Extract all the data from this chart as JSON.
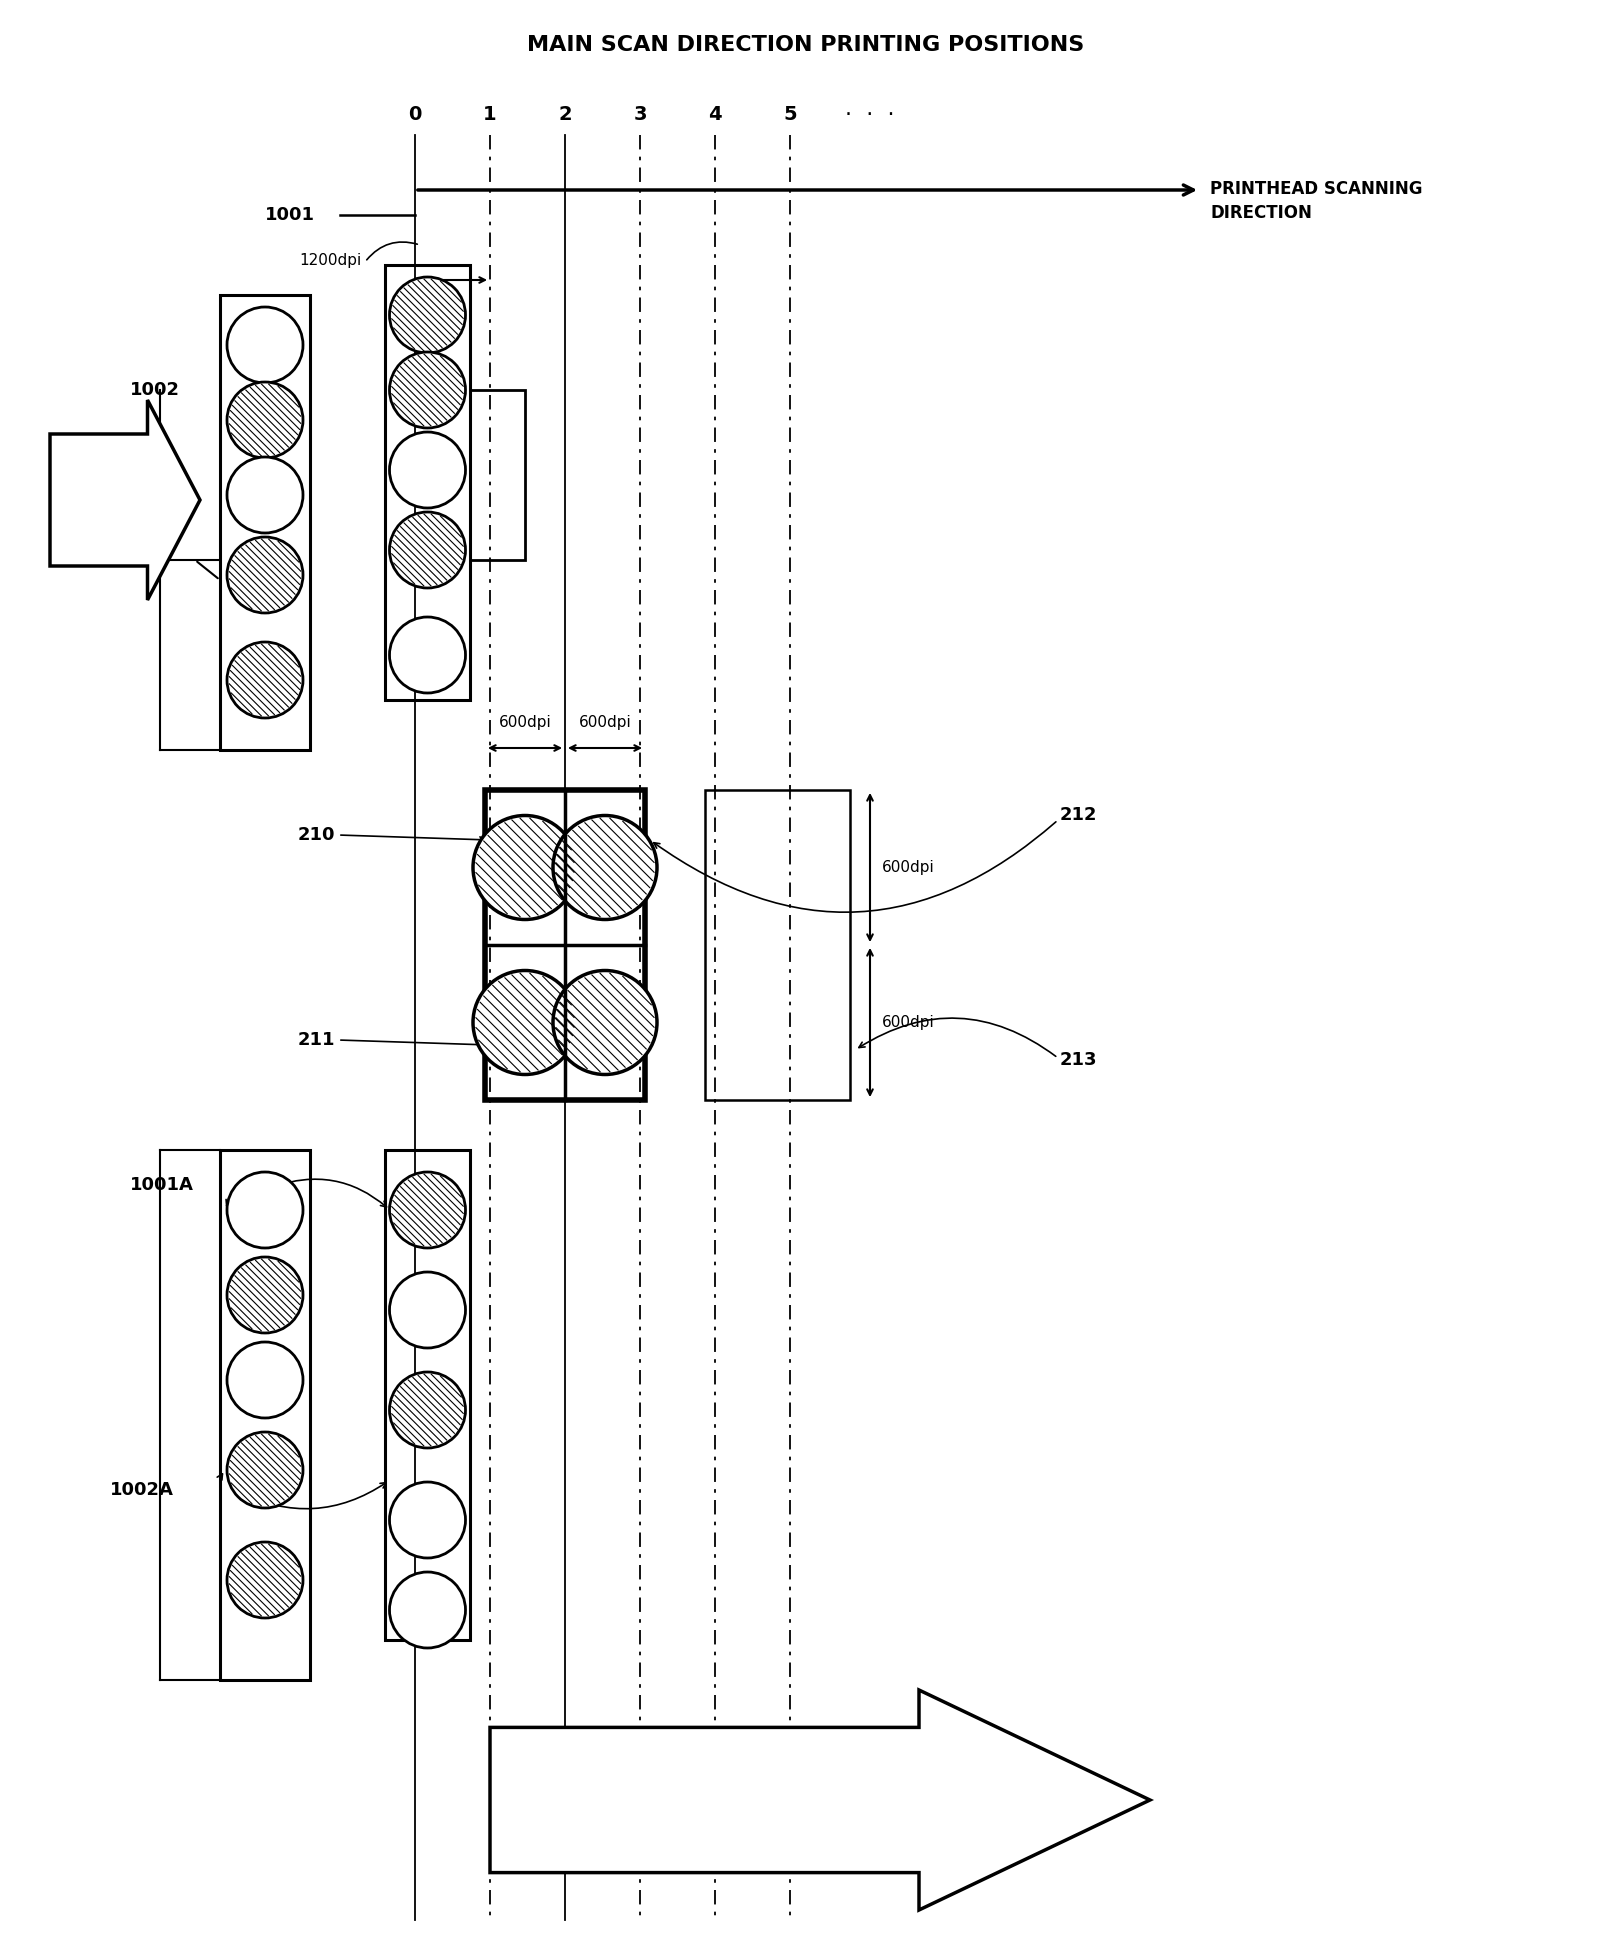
{
  "title": "MAIN SCAN DIRECTION PRINTING POSITIONS",
  "bg": "#ffffff",
  "lc": "#000000",
  "printhead_label": "PRINTHEAD SCANNING\nDIRECTION",
  "pos_labels": [
    "0",
    "1",
    "2",
    "3",
    "4",
    "5"
  ],
  "label_1001": "1001",
  "label_1002": "1002",
  "label_1001A": "1001A",
  "label_1002A": "1002A",
  "label_210": "210",
  "label_211": "211",
  "label_212": "212",
  "label_213": "213",
  "label_1200dpi": "1200dpi",
  "label_600dpi": "600dpi"
}
